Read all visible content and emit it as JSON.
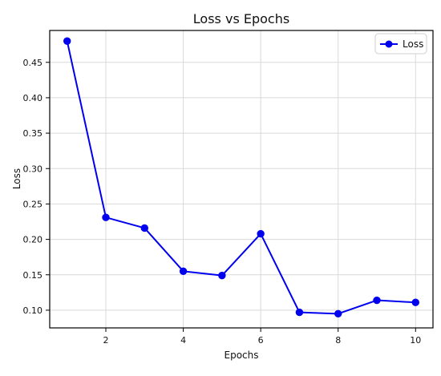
{
  "chart_data": {
    "type": "line",
    "title": "Loss vs Epochs",
    "xlabel": "Epochs",
    "ylabel": "Loss",
    "x": [
      1,
      2,
      3,
      4,
      5,
      6,
      7,
      8,
      9,
      10
    ],
    "series": [
      {
        "name": "Loss",
        "values": [
          0.48,
          0.231,
          0.216,
          0.155,
          0.149,
          0.208,
          0.097,
          0.095,
          0.114,
          0.111
        ],
        "color": "#0000ee",
        "marker": "circle"
      }
    ],
    "xlim": [
      0.55,
      10.45
    ],
    "ylim": [
      0.075,
      0.495
    ],
    "xticks": [
      2,
      4,
      6,
      8,
      10
    ],
    "xtick_labels": [
      "2",
      "4",
      "6",
      "8",
      "10"
    ],
    "yticks": [
      0.1,
      0.15,
      0.2,
      0.25,
      0.3,
      0.35,
      0.4,
      0.45
    ],
    "ytick_labels": [
      "0.10",
      "0.15",
      "0.20",
      "0.25",
      "0.30",
      "0.35",
      "0.40",
      "0.45"
    ],
    "grid": true,
    "legend": "top-right"
  }
}
